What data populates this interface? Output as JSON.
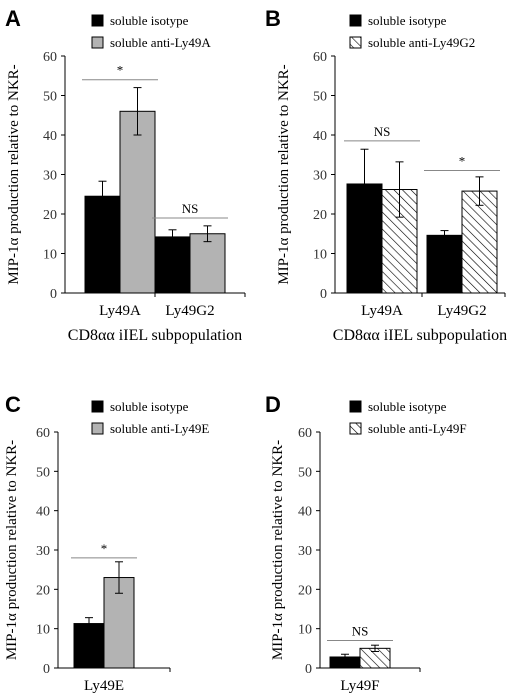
{
  "colors": {
    "black": "#000000",
    "gray": "#b3b3b3",
    "hatch": "#ffffff"
  },
  "chart_data": [
    {
      "panel": "A",
      "type": "bar",
      "ylabel": "MIP-1α production relative to NKR-",
      "xlabel": "CD8αα iIEL subpopulation",
      "ylim": [
        0,
        60
      ],
      "yticks": [
        "0",
        "10",
        "20",
        "30",
        "40",
        "50",
        "60"
      ],
      "categories": [
        "Ly49A",
        "Ly49G2"
      ],
      "legend": [
        "soluble isotype",
        "soluble anti-Ly49A"
      ],
      "second_style": "gray",
      "series": [
        {
          "name": "soluble isotype",
          "values": [
            24.5,
            14.2
          ],
          "errors": [
            3.8,
            1.8
          ]
        },
        {
          "name": "soluble anti-Ly49A",
          "values": [
            46.0,
            15.0
          ],
          "errors": [
            6.0,
            2.0
          ]
        }
      ],
      "annotations": [
        {
          "category": "Ly49A",
          "text": "*",
          "level": 54
        },
        {
          "category": "Ly49G2",
          "text": "NS",
          "level": 19
        }
      ]
    },
    {
      "panel": "B",
      "type": "bar",
      "ylabel": "MIP-1α production relative to NKR-",
      "xlabel": "CD8αα iIEL subpopulation",
      "ylim": [
        0,
        60
      ],
      "yticks": [
        "0",
        "10",
        "20",
        "30",
        "40",
        "50",
        "60"
      ],
      "categories": [
        "Ly49A",
        "Ly49G2"
      ],
      "legend": [
        "soluble isotype",
        "soluble anti-Ly49G2"
      ],
      "second_style": "hatch",
      "series": [
        {
          "name": "soluble isotype",
          "values": [
            27.6,
            14.6
          ],
          "errors": [
            8.8,
            1.2
          ]
        },
        {
          "name": "soluble anti-Ly49G2",
          "values": [
            26.2,
            25.8
          ],
          "errors": [
            7.0,
            3.6
          ]
        }
      ],
      "annotations": [
        {
          "category": "Ly49A",
          "text": "NS",
          "level": 38.5
        },
        {
          "category": "Ly49G2",
          "text": "*",
          "level": 31
        }
      ]
    },
    {
      "panel": "C",
      "type": "bar",
      "ylabel": "MIP-1α production relative to NKR-",
      "xlabel": "",
      "ylim": [
        0,
        60
      ],
      "yticks": [
        "0",
        "10",
        "20",
        "30",
        "40",
        "50",
        "60"
      ],
      "categories": [
        "Ly49E"
      ],
      "legend": [
        "soluble isotype",
        "soluble anti-Ly49E"
      ],
      "second_style": "gray",
      "series": [
        {
          "name": "soluble isotype",
          "values": [
            11.3
          ],
          "errors": [
            1.5
          ]
        },
        {
          "name": "soluble anti-Ly49E",
          "values": [
            23.0
          ],
          "errors": [
            4.0
          ]
        }
      ],
      "annotations": [
        {
          "category": "Ly49E",
          "text": "*",
          "level": 28
        }
      ]
    },
    {
      "panel": "D",
      "type": "bar",
      "ylabel": "MIP-1α production relative to NKR-",
      "xlabel": "",
      "ylim": [
        0,
        60
      ],
      "yticks": [
        "0",
        "10",
        "20",
        "30",
        "40",
        "50",
        "60"
      ],
      "categories": [
        "Ly49F"
      ],
      "legend": [
        "soluble isotype",
        "soluble anti-Ly49F"
      ],
      "second_style": "hatch",
      "series": [
        {
          "name": "soluble isotype",
          "values": [
            2.8
          ],
          "errors": [
            0.7
          ]
        },
        {
          "name": "soluble anti-Ly49F",
          "values": [
            5.0
          ],
          "errors": [
            0.8
          ]
        }
      ],
      "annotations": [
        {
          "category": "Ly49F",
          "text": "NS",
          "level": 7
        }
      ]
    }
  ]
}
